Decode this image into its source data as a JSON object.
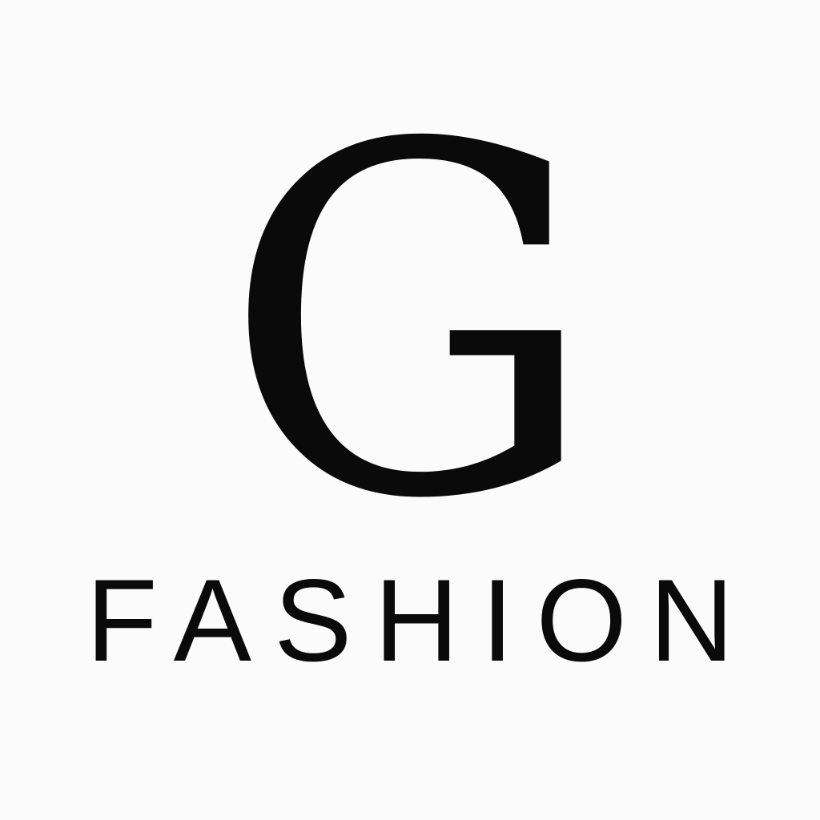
{
  "logo": {
    "monogram": "G",
    "wordmark": "FASHION"
  },
  "colors": {
    "background": "#fbfbfb",
    "ink": "#0a0a0a"
  }
}
